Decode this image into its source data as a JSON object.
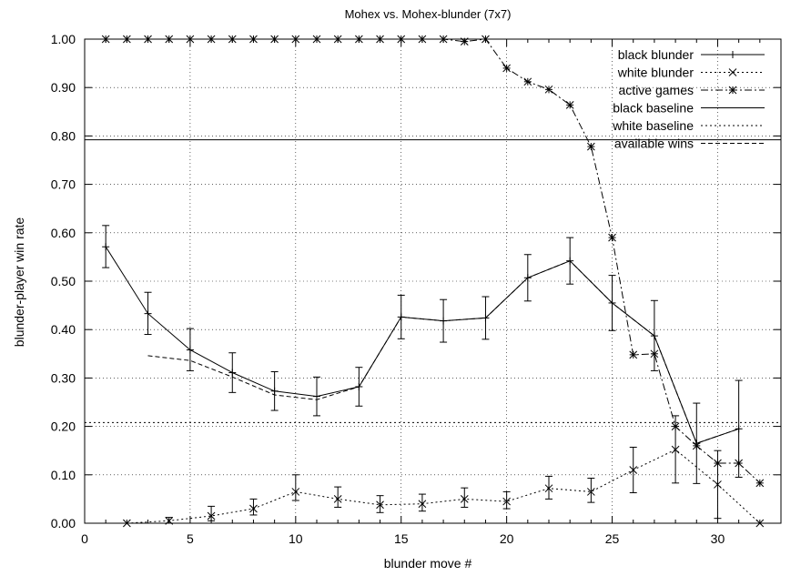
{
  "chart_data": {
    "type": "line",
    "title": "Mohex vs. Mohex-blunder (7x7)",
    "xlabel": "blunder move #",
    "ylabel": "blunder-player win rate",
    "xlim": [
      0,
      33
    ],
    "ylim": [
      0,
      1
    ],
    "xticks": [
      0,
      5,
      10,
      15,
      20,
      25,
      30
    ],
    "yticks": [
      0,
      0.1,
      0.2,
      0.3,
      0.4,
      0.5,
      0.6,
      0.7,
      0.8,
      0.9,
      1.0
    ],
    "xtick_labels": [
      "0",
      "5",
      "10",
      "15",
      "20",
      "25",
      "30"
    ],
    "ytick_labels": [
      "0.00",
      "0.10",
      "0.20",
      "0.30",
      "0.40",
      "0.50",
      "0.60",
      "0.70",
      "0.80",
      "0.90",
      "1.00"
    ],
    "grid": true,
    "legend_position": "top-right",
    "series": [
      {
        "name": "black blunder",
        "style": "solid",
        "marker": "plus",
        "x": [
          1,
          3,
          5,
          7,
          9,
          11,
          13,
          15,
          17,
          19,
          21,
          23,
          25,
          27,
          29,
          31
        ],
        "y": [
          0.571,
          0.433,
          0.358,
          0.311,
          0.273,
          0.262,
          0.282,
          0.426,
          0.418,
          0.424,
          0.507,
          0.542,
          0.455,
          0.387,
          0.165,
          0.195
        ],
        "err_low": [
          0.528,
          0.39,
          0.315,
          0.27,
          0.233,
          0.222,
          0.242,
          0.381,
          0.374,
          0.38,
          0.459,
          0.494,
          0.398,
          0.315,
          0.082,
          0.095
        ],
        "err_high": [
          0.615,
          0.477,
          0.402,
          0.352,
          0.313,
          0.302,
          0.322,
          0.471,
          0.462,
          0.468,
          0.555,
          0.59,
          0.512,
          0.46,
          0.248,
          0.295
        ]
      },
      {
        "name": "white blunder",
        "style": "dotted",
        "marker": "x",
        "x": [
          2,
          4,
          6,
          8,
          10,
          12,
          14,
          16,
          18,
          20,
          22,
          24,
          26,
          28,
          30,
          32
        ],
        "y": [
          0.0,
          0.005,
          0.015,
          0.03,
          0.065,
          0.05,
          0.038,
          0.04,
          0.05,
          0.045,
          0.072,
          0.065,
          0.11,
          0.152,
          0.08,
          0.0
        ],
        "err_low": [
          0.0,
          0.0,
          0.005,
          0.017,
          0.047,
          0.033,
          0.022,
          0.025,
          0.033,
          0.03,
          0.05,
          0.043,
          0.063,
          0.083,
          0.01,
          0.0
        ],
        "err_high": [
          0.0,
          0.012,
          0.035,
          0.05,
          0.1,
          0.075,
          0.057,
          0.06,
          0.073,
          0.065,
          0.097,
          0.093,
          0.157,
          0.222,
          0.15,
          0.0
        ]
      },
      {
        "name": "active games",
        "style": "dashdot",
        "marker": "star",
        "x": [
          1,
          2,
          3,
          4,
          5,
          6,
          7,
          8,
          9,
          10,
          11,
          12,
          13,
          14,
          15,
          16,
          17,
          18,
          19,
          20,
          21,
          22,
          23,
          24,
          25,
          26,
          27,
          28,
          29,
          30,
          31,
          32
        ],
        "y": [
          1.0,
          1.0,
          1.0,
          1.0,
          1.0,
          1.0,
          1.0,
          1.0,
          1.0,
          1.0,
          1.0,
          1.0,
          1.0,
          1.0,
          1.0,
          1.0,
          1.0,
          0.995,
          1.0,
          0.94,
          0.912,
          0.896,
          0.864,
          0.778,
          0.59,
          0.348,
          0.35,
          0.2,
          0.16,
          0.124,
          0.124,
          0.083
        ]
      },
      {
        "name": "black baseline",
        "style": "solid",
        "constant": 0.792
      },
      {
        "name": "white baseline",
        "style": "dotted",
        "constant": 0.208
      },
      {
        "name": "available wins",
        "style": "dashed",
        "x": [
          3,
          5,
          7,
          9,
          11,
          13,
          15,
          17,
          19,
          21,
          23,
          25,
          27,
          29,
          31
        ],
        "y": [
          0.346,
          0.336,
          0.302,
          0.265,
          0.255,
          0.282,
          0.426,
          0.418,
          0.424,
          0.507,
          0.542,
          0.455,
          0.387,
          0.165,
          0.195
        ]
      }
    ]
  }
}
